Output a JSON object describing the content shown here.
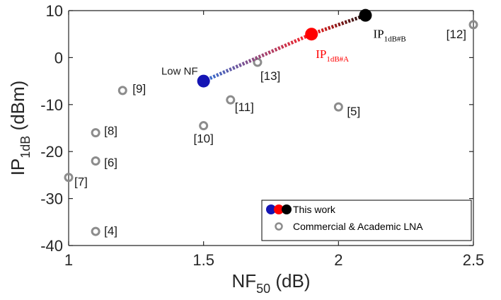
{
  "chart_data": {
    "type": "scatter",
    "xlabel": {
      "main": "NF",
      "sub": "50",
      "rest": " (dB)"
    },
    "ylabel": {
      "main": "IP",
      "sub": "1dB",
      "rest": " (dBm)"
    },
    "xlim": [
      1,
      2.5
    ],
    "ylim": [
      -40,
      10
    ],
    "xticks": [
      1,
      1.5,
      2,
      2.5
    ],
    "yticks": [
      -40,
      -30,
      -20,
      -10,
      0,
      10
    ],
    "xtick_labels": [
      "1",
      "1.5",
      "2",
      "2.5"
    ],
    "ytick_labels": [
      "-40",
      "-30",
      "-20",
      "-10",
      "0",
      "10"
    ],
    "grid": false,
    "legend_position": "bottom-right",
    "series": [
      {
        "name": "This work",
        "points": [
          {
            "x": 1.5,
            "y": -5,
            "color": "#1515b4",
            "label": "Low NF"
          },
          {
            "x": 1.9,
            "y": 5,
            "color": "#ff0000",
            "label_main": "IP",
            "label_sub": "1dB#A"
          },
          {
            "x": 2.1,
            "y": 9,
            "color": "#000000",
            "label_main": "IP",
            "label_sub": "1dB#B"
          }
        ]
      },
      {
        "name": "Commercial & Academic LNA",
        "color": "#8c8c8c",
        "points": [
          {
            "x": 1.1,
            "y": -37,
            "label": "[4]"
          },
          {
            "x": 2.0,
            "y": -10.5,
            "label": "[5]"
          },
          {
            "x": 1.1,
            "y": -22,
            "label": "[6]"
          },
          {
            "x": 1.0,
            "y": -25.5,
            "label": "[7]"
          },
          {
            "x": 1.1,
            "y": -16,
            "label": "[8]"
          },
          {
            "x": 1.2,
            "y": -7,
            "label": "[9]"
          },
          {
            "x": 1.5,
            "y": -14.5,
            "label": "[10]"
          },
          {
            "x": 1.6,
            "y": -9,
            "label": "[11]"
          },
          {
            "x": 2.5,
            "y": 7,
            "label": "[12]"
          },
          {
            "x": 1.7,
            "y": -1,
            "label": "[13]"
          }
        ]
      }
    ],
    "colors": {
      "low_nf": "#1515b4",
      "ip1db_a": "#ff0000",
      "ip1db_b": "#000000",
      "commercial": "#8c8c8c",
      "axis": "#262626"
    }
  }
}
